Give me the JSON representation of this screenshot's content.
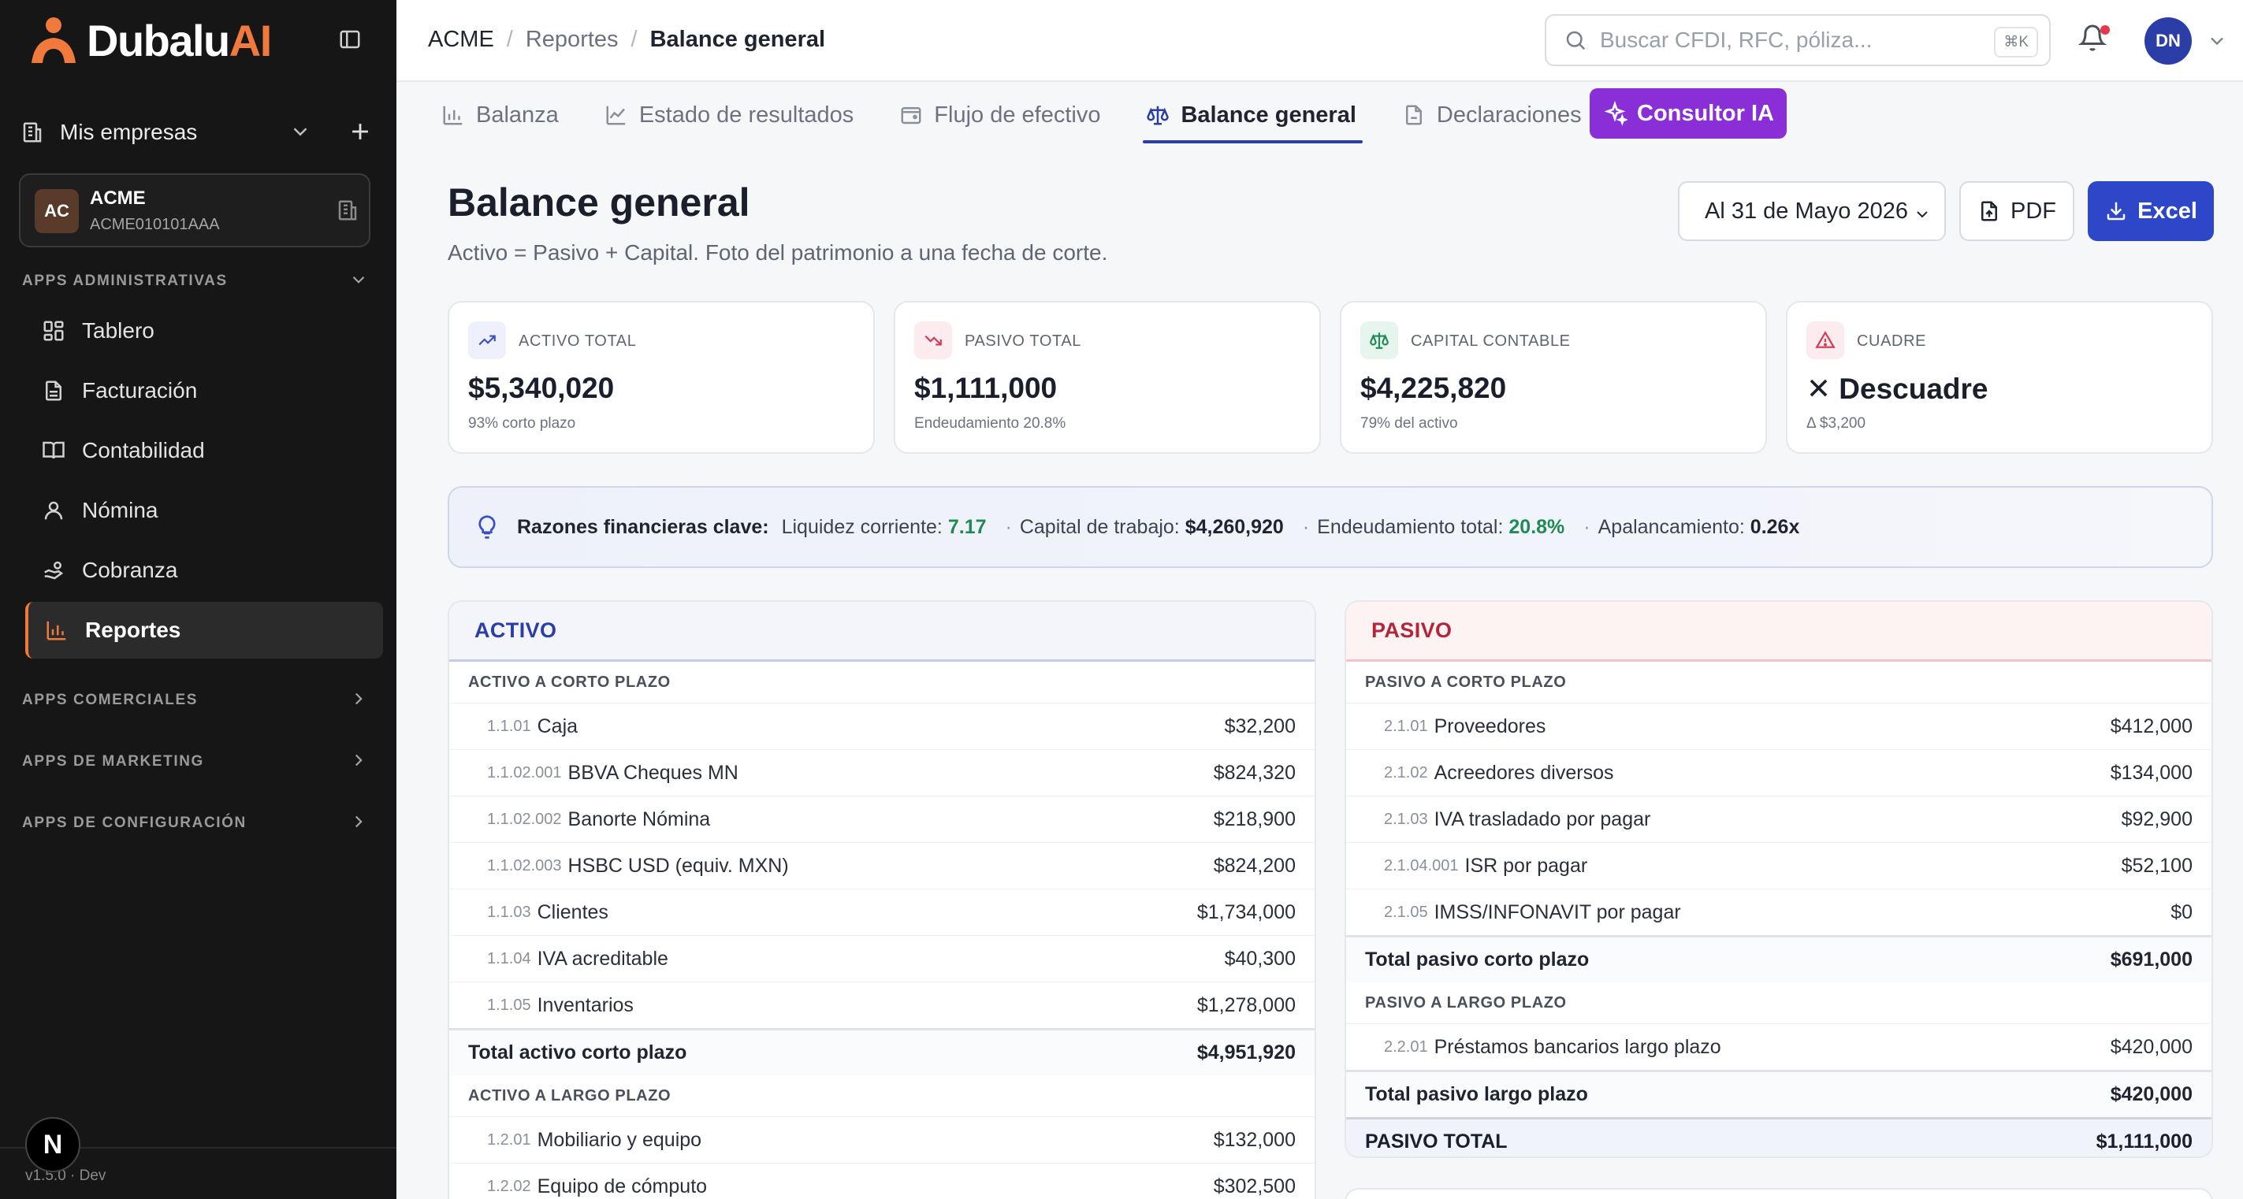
{
  "brand": {
    "name_main": "Dubalu",
    "name_accent": "AI",
    "accent": "#f07a3c"
  },
  "sidebar": {
    "company_selector": "Mis empresas",
    "company": {
      "initials": "AC",
      "name": "ACME",
      "rfc": "ACME010101AAA"
    },
    "section_admin": "APPS ADMINISTRATIVAS",
    "items": [
      {
        "label": "Tablero",
        "icon": "grid-icon"
      },
      {
        "label": "Facturación",
        "icon": "document-icon"
      },
      {
        "label": "Contabilidad",
        "icon": "book-icon"
      },
      {
        "label": "Nómina",
        "icon": "user-icon"
      },
      {
        "label": "Cobranza",
        "icon": "hand-coins-icon"
      },
      {
        "label": "Reportes",
        "icon": "bar-chart-icon",
        "active": true
      }
    ],
    "section_commercial": "APPS COMERCIALES",
    "section_marketing": "APPS DE MARKETING",
    "section_config": "APPS DE CONFIGURACIÓN",
    "badge": "N",
    "version": "v1.5.0 · Dev"
  },
  "topbar": {
    "breadcrumb": [
      "ACME",
      "Reportes",
      "Balance general"
    ],
    "search_placeholder": "Buscar CFDI, RFC, póliza...",
    "shortcut": "⌘K",
    "user_initials": "DN"
  },
  "tabs": [
    {
      "label": "Balanza",
      "icon": "bar-chart-icon"
    },
    {
      "label": "Estado de resultados",
      "icon": "line-chart-icon"
    },
    {
      "label": "Flujo de efectivo",
      "icon": "wallet-icon"
    },
    {
      "label": "Balance general",
      "icon": "scale-icon",
      "active": true
    },
    {
      "label": "Declaraciones",
      "icon": "file-icon"
    }
  ],
  "ai_tab": "Consultor IA",
  "page": {
    "title": "Balance general",
    "subtitle": "Activo = Pasivo + Capital. Foto del patrimonio a una fecha de corte.",
    "date": "Al 31 de Mayo 2026",
    "pdf": "PDF",
    "excel": "Excel"
  },
  "kpis": [
    {
      "label": "ACTIVO TOTAL",
      "value": "$5,340,020",
      "sub": "93% corto plazo",
      "icon": "trending-up-icon",
      "color": "#3b4fc4",
      "bg": "#eef0fb"
    },
    {
      "label": "PASIVO TOTAL",
      "value": "$1,111,000",
      "sub": "Endeudamiento 20.8%",
      "icon": "trending-down-icon",
      "color": "#d23a54",
      "bg": "#fdecef"
    },
    {
      "label": "CAPITAL CONTABLE",
      "value": "$4,225,820",
      "sub": "79% del activo",
      "icon": "scale-icon",
      "color": "#1f8a55",
      "bg": "#e6f6ee"
    },
    {
      "label": "CUADRE",
      "value": "✕ Descuadre",
      "sub": "Δ $3,200",
      "icon": "alert-triangle-icon",
      "color": "#d23a54",
      "bg": "#fdecef"
    }
  ],
  "ratios": {
    "title": "Razones financieras clave:",
    "items": [
      {
        "label": "Liquidez corriente:",
        "value": "7.17",
        "tone": "green"
      },
      {
        "label": "Capital de trabajo:",
        "value": "$4,260,920",
        "tone": "dark"
      },
      {
        "label": "Endeudamiento total:",
        "value": "20.8%",
        "tone": "green"
      },
      {
        "label": "Apalancamiento:",
        "value": "0.26x",
        "tone": "dark"
      }
    ]
  },
  "activo": {
    "title": "ACTIVO",
    "short_title": "ACTIVO A CORTO PLAZO",
    "short_rows": [
      {
        "code": "1.1.01",
        "name": "Caja",
        "amount": "$32,200"
      },
      {
        "code": "1.1.02.001",
        "name": "BBVA Cheques MN",
        "amount": "$824,320"
      },
      {
        "code": "1.1.02.002",
        "name": "Banorte Nómina",
        "amount": "$218,900"
      },
      {
        "code": "1.1.02.003",
        "name": "HSBC USD (equiv. MXN)",
        "amount": "$824,200"
      },
      {
        "code": "1.1.03",
        "name": "Clientes",
        "amount": "$1,734,000"
      },
      {
        "code": "1.1.04",
        "name": "IVA acreditable",
        "amount": "$40,300"
      },
      {
        "code": "1.1.05",
        "name": "Inventarios",
        "amount": "$1,278,000"
      }
    ],
    "short_total_label": "Total activo corto plazo",
    "short_total": "$4,951,920",
    "long_title": "ACTIVO A LARGO PLAZO",
    "long_rows": [
      {
        "code": "1.2.01",
        "name": "Mobiliario y equipo",
        "amount": "$132,000"
      },
      {
        "code": "1.2.02",
        "name": "Equipo de cómputo",
        "amount": "$302,500"
      }
    ]
  },
  "pasivo": {
    "title": "PASIVO",
    "short_title": "PASIVO A CORTO PLAZO",
    "short_rows": [
      {
        "code": "2.1.01",
        "name": "Proveedores",
        "amount": "$412,000"
      },
      {
        "code": "2.1.02",
        "name": "Acreedores diversos",
        "amount": "$134,000"
      },
      {
        "code": "2.1.03",
        "name": "IVA trasladado por pagar",
        "amount": "$92,900"
      },
      {
        "code": "2.1.04.001",
        "name": "ISR por pagar",
        "amount": "$52,100"
      },
      {
        "code": "2.1.05",
        "name": "IMSS/INFONAVIT por pagar",
        "amount": "$0"
      }
    ],
    "short_total_label": "Total pasivo corto plazo",
    "short_total": "$691,000",
    "long_title": "PASIVO A LARGO PLAZO",
    "long_rows": [
      {
        "code": "2.2.01",
        "name": "Préstamos bancarios largo plazo",
        "amount": "$420,000"
      }
    ],
    "long_total_label": "Total pasivo largo plazo",
    "long_total": "$420,000",
    "grand_label": "PASIVO TOTAL",
    "grand_total": "$1,111,000"
  }
}
